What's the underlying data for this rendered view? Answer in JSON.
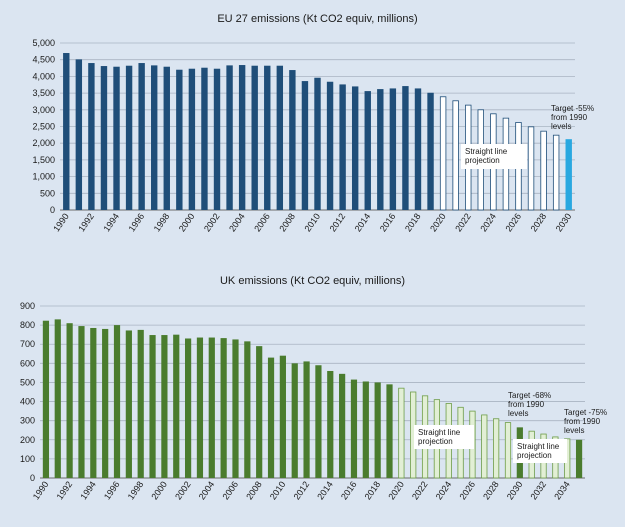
{
  "chart_data": [
    {
      "type": "bar",
      "title": "EU 27 emissions (Kt CO2 equiv, millions)",
      "xlabel": "",
      "ylabel": "",
      "ylim": [
        0,
        5000
      ],
      "yticks": [
        "0",
        "500",
        "1,000",
        "1,500",
        "2,000",
        "2,500",
        "3,000",
        "3,500",
        "4,000",
        "4,500",
        "5,000"
      ],
      "xtick_labels": [
        "1990",
        "1992",
        "1994",
        "1996",
        "1998",
        "2000",
        "2002",
        "2004",
        "2006",
        "2008",
        "2010",
        "2012",
        "2014",
        "2016",
        "2018",
        "2020",
        "2022",
        "2024",
        "2026",
        "2028",
        "2030"
      ],
      "grid": true,
      "colors": {
        "actual": "#1f4e79",
        "projection_outline": "#1f4e79",
        "projection_fill": "#ffffff",
        "target": "#29a8e0"
      },
      "series": [
        {
          "role": "actual",
          "x": [
            1990,
            1991,
            1992,
            1993,
            1994,
            1995,
            1996,
            1997,
            1998,
            1999,
            2000,
            2001,
            2002,
            2003,
            2004,
            2005,
            2006,
            2007,
            2008,
            2009,
            2010,
            2011,
            2012,
            2013,
            2014,
            2015,
            2016,
            2017,
            2018,
            2019
          ],
          "values": [
            4700,
            4510,
            4400,
            4310,
            4290,
            4320,
            4400,
            4330,
            4290,
            4200,
            4230,
            4260,
            4230,
            4330,
            4340,
            4320,
            4320,
            4320,
            4190,
            3860,
            3960,
            3840,
            3760,
            3700,
            3560,
            3620,
            3640,
            3710,
            3640,
            3510
          ]
        },
        {
          "role": "projection",
          "x": [
            2020,
            2021,
            2022,
            2023,
            2024,
            2025,
            2026,
            2027,
            2028,
            2029
          ],
          "values": [
            3390,
            3270,
            3140,
            3000,
            2880,
            2750,
            2620,
            2490,
            2360,
            2240
          ]
        },
        {
          "role": "target",
          "x": [
            2030
          ],
          "values": [
            2120
          ]
        }
      ],
      "annotations": [
        {
          "text_lines": [
            "Target -55%",
            "from 1990",
            "levels"
          ]
        },
        {
          "text_lines": [
            "Straight line",
            "projection"
          ]
        }
      ]
    },
    {
      "type": "bar",
      "title": "UK emissions (Kt CO2 equiv, millions)",
      "xlabel": "",
      "ylabel": "",
      "ylim": [
        0,
        900
      ],
      "yticks": [
        "0",
        "100",
        "200",
        "300",
        "400",
        "500",
        "600",
        "700",
        "800",
        "900"
      ],
      "xtick_labels": [
        "1990",
        "1992",
        "1994",
        "1996",
        "1998",
        "2000",
        "2002",
        "2004",
        "2006",
        "2008",
        "2010",
        "2012",
        "2014",
        "2016",
        "2018",
        "2020",
        "2022",
        "2024",
        "2026",
        "2028",
        "2030",
        "2032",
        "2034"
      ],
      "grid": true,
      "colors": {
        "actual": "#4a7c2e",
        "projection_outline": "#6e9d48",
        "projection_fill": "#e2efd5",
        "target": "#4a7c2e"
      },
      "series": [
        {
          "role": "actual",
          "x": [
            1990,
            1991,
            1992,
            1993,
            1994,
            1995,
            1996,
            1997,
            1998,
            1999,
            2000,
            2001,
            2002,
            2003,
            2004,
            2005,
            2006,
            2007,
            2008,
            2009,
            2010,
            2011,
            2012,
            2013,
            2014,
            2015,
            2016,
            2017,
            2018,
            2019
          ],
          "values": [
            823,
            830,
            810,
            795,
            785,
            780,
            800,
            772,
            775,
            748,
            748,
            750,
            730,
            735,
            735,
            732,
            725,
            715,
            690,
            630,
            640,
            600,
            610,
            590,
            560,
            545,
            515,
            505,
            500,
            490
          ]
        },
        {
          "role": "projection",
          "x": [
            2020,
            2021,
            2022,
            2023,
            2024,
            2025,
            2026,
            2027,
            2028,
            2029
          ],
          "values": [
            470,
            450,
            430,
            410,
            390,
            370,
            350,
            330,
            310,
            290
          ]
        },
        {
          "role": "target",
          "x": [
            2030
          ],
          "values": [
            265
          ]
        },
        {
          "role": "projection",
          "x": [
            2031,
            2032,
            2033,
            2034
          ],
          "values": [
            245,
            230,
            215,
            205
          ]
        },
        {
          "role": "target",
          "x": [
            2035
          ],
          "values": [
            200
          ]
        }
      ],
      "annotations": [
        {
          "text_lines": [
            "Target -68%",
            "from 1990",
            "levels"
          ]
        },
        {
          "text_lines": [
            "Target -75%",
            "from 1990",
            "levels"
          ]
        },
        {
          "text_lines": [
            "Straight line",
            "projection"
          ]
        },
        {
          "text_lines": [
            "Straight line",
            "projection"
          ]
        }
      ]
    }
  ]
}
